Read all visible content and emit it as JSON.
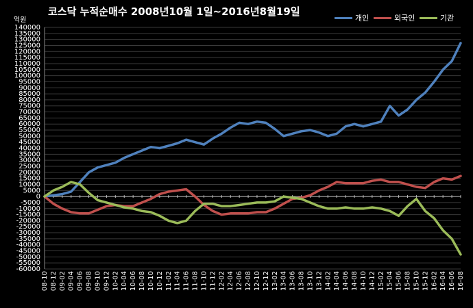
{
  "chart_data": {
    "type": "line",
    "title": "코스닥  누적순매수 2008년10월 1일~2016년8월19일",
    "ylabel": "억원",
    "ylim": [
      -60000,
      140000
    ],
    "ytick_step": 5000,
    "grid": true,
    "legend_position": "top-right",
    "categories": [
      "08-10",
      "08-12",
      "09-02",
      "09-04",
      "09-06",
      "09-08",
      "09-10",
      "09-12",
      "10-02",
      "10-04",
      "10-06",
      "10-08",
      "10-10",
      "10-12",
      "11-02",
      "11-04",
      "11-06",
      "11-08",
      "11-10",
      "11-12",
      "12-02",
      "12-04",
      "12-06",
      "12-08",
      "12-10",
      "12-12",
      "13-02",
      "13-04",
      "13-06",
      "13-08",
      "13-10",
      "13-12",
      "14-02",
      "14-04",
      "14-06",
      "14-08",
      "14-10",
      "14-12",
      "15-02",
      "15-04",
      "15-06",
      "15-08",
      "15-10",
      "15-12",
      "16-02",
      "16-04",
      "16-06",
      "16-08"
    ],
    "series": [
      {
        "name": "개인",
        "color": "#4f81bd",
        "values": [
          0,
          1000,
          2000,
          4000,
          12000,
          20000,
          24000,
          26000,
          28000,
          32000,
          35000,
          38000,
          41000,
          40000,
          42000,
          44000,
          47000,
          45000,
          43000,
          48000,
          52000,
          57000,
          61000,
          60000,
          62000,
          61000,
          56000,
          50000,
          52000,
          54000,
          55000,
          53000,
          50000,
          52000,
          58000,
          60000,
          58000,
          60000,
          62000,
          75000,
          67000,
          72000,
          80000,
          86000,
          95000,
          105000,
          112000,
          127000
        ]
      },
      {
        "name": "외국인",
        "color": "#c0504d",
        "values": [
          0,
          -6000,
          -10000,
          -13000,
          -14000,
          -14000,
          -11000,
          -8000,
          -7000,
          -8000,
          -8000,
          -5000,
          -2000,
          2000,
          4000,
          5000,
          6000,
          0,
          -7000,
          -12000,
          -15000,
          -14000,
          -14000,
          -14000,
          -13000,
          -13000,
          -10000,
          -6000,
          -2000,
          -1000,
          1000,
          5000,
          8000,
          12000,
          11000,
          11000,
          11000,
          13000,
          14000,
          12000,
          12000,
          10000,
          8000,
          7000,
          12000,
          15000,
          14000,
          17000
        ]
      },
      {
        "name": "기관",
        "color": "#9bbb59",
        "values": [
          0,
          5000,
          8000,
          12000,
          10000,
          3000,
          -3000,
          -5000,
          -7000,
          -9000,
          -10000,
          -12000,
          -13000,
          -16000,
          -20000,
          -22000,
          -20000,
          -12000,
          -6000,
          -6000,
          -8000,
          -8000,
          -7000,
          -6000,
          -5000,
          -5000,
          -4000,
          0,
          -1000,
          -2000,
          -5000,
          -8000,
          -10000,
          -10000,
          -9000,
          -10000,
          -10000,
          -9000,
          -10000,
          -12000,
          -16000,
          -8000,
          -2000,
          -12000,
          -18000,
          -28000,
          -35000,
          -48000
        ]
      }
    ]
  }
}
